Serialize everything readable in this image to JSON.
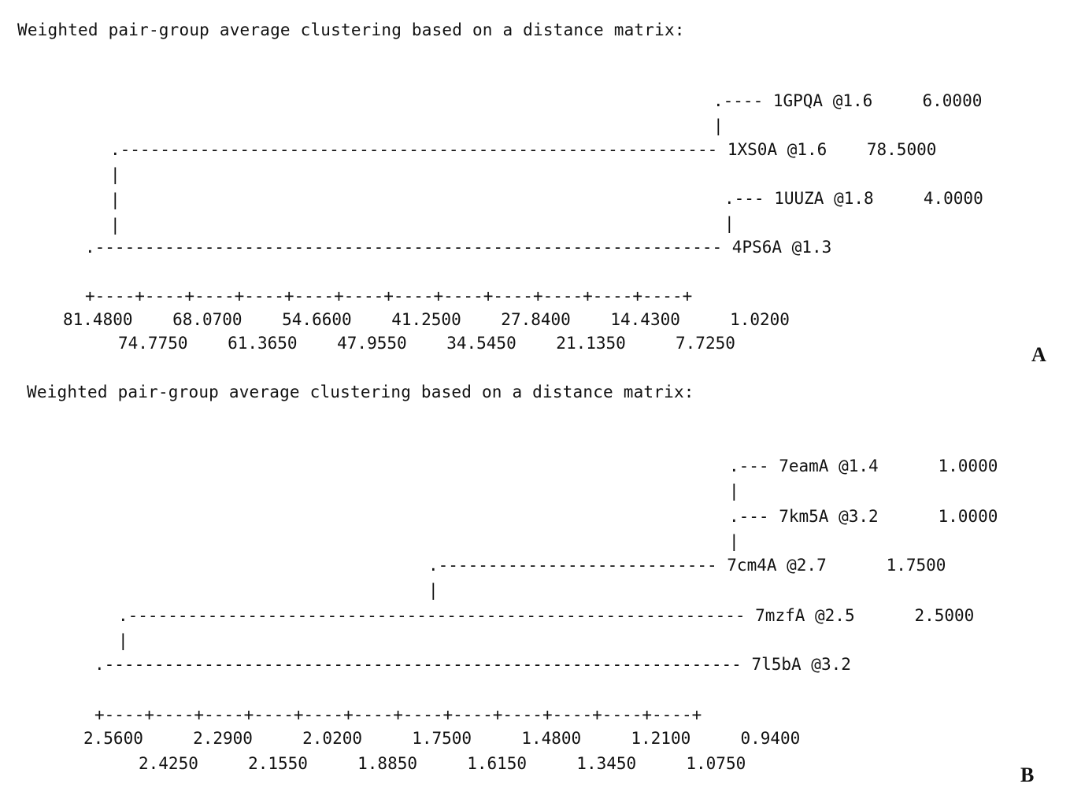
{
  "panels": [
    {
      "letter": "A",
      "heading": "Weighted pair-group average clustering based on a distance matrix:",
      "rows": [
        ".---- 1GPQA @1.6     6.0000",
        "|",
        ".------------------------------------------------------------ 1XS0A @1.6    78.5000",
        "|",
        "|",
        ".--- 1UUZA @1.8     4.0000",
        "|",
        "|",
        ".--------------------------------------------------------------- 4PS6A @1.3"
      ],
      "scale_line": "+----+----+----+----+----+----+----+----+----+----+----+----+",
      "scale_top": "81.4800    68.0700    54.6600    41.2500    27.8400    14.4300     1.0200",
      "scale_bottom": "74.7750    61.3650    47.9550    34.5450    21.1350     7.7250"
    },
    {
      "letter": "B",
      "heading": "Weighted pair-group average clustering based on a distance matrix:",
      "rows": [
        ".--- 7eamA @1.4      1.0000",
        "|",
        ".--- 7km5A @3.2      1.0000",
        "|",
        ".---------------------------- 7cm4A @2.7      1.7500",
        "|",
        ".-------------------------------------------------------------- 7mzfA @2.5      2.5000",
        "|",
        ".---------------------------------------------------------------- 7l5bA @3.2"
      ],
      "scale_line": "+----+----+----+----+----+----+----+----+----+----+----+----+",
      "scale_top": "2.5600     2.2900     2.0200     1.7500     1.4800     1.2100     0.9400",
      "scale_bottom": "2.4250     2.1550     1.8850     1.6150     1.3450     1.0750"
    }
  ]
}
